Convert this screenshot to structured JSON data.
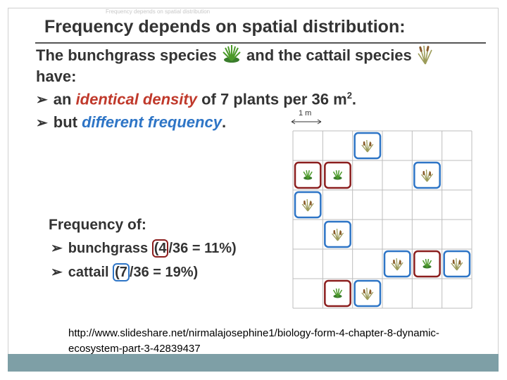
{
  "header": {
    "faint_text": "Frequency depends on spatial distribution",
    "title": "Frequency depends on spatial distribution:"
  },
  "intro": {
    "part1": "The bunchgrass species",
    "part2": "and the cattail species",
    "part3": "have:"
  },
  "bullets": {
    "b1_pre": "an ",
    "b1_emph": "identical density",
    "b1_post": " of 7 plants per 36 m",
    "b1_sup": "2",
    "b1_end": ".",
    "b2_pre": "but ",
    "b2_emph": "different frequency",
    "b2_end": "."
  },
  "grid": {
    "scale_label": "1 m",
    "rows": 6,
    "cols": 6,
    "bunchgrass_cells": [
      [
        1,
        0
      ],
      [
        1,
        1
      ],
      [
        4,
        4
      ],
      [
        5,
        1
      ]
    ],
    "cattail_cells": [
      [
        0,
        2
      ],
      [
        1,
        4
      ],
      [
        2,
        0
      ],
      [
        3,
        1
      ],
      [
        4,
        3
      ],
      [
        4,
        5
      ],
      [
        5,
        2
      ]
    ]
  },
  "frequency": {
    "title": "Frequency of:",
    "bunchgrass_label": "bunchgrass ",
    "bunchgrass_open": "(",
    "bunchgrass_count": "4",
    "bunchgrass_rest": "/36 = 11%)",
    "cattail_label": "cattail ",
    "cattail_open": "(",
    "cattail_count": "7",
    "cattail_rest": "/36 = 19%)"
  },
  "source": {
    "url": "http://www.slideshare.net/nirmalajosephine1/biology-form-4-chapter-8-dynamic-ecosystem-part-3-42839437"
  },
  "colors": {
    "bunchgrass_box": "#8b1e1e",
    "cattail_box": "#2e75c6",
    "emphasis_red": "#c0392b",
    "emphasis_blue": "#2e75c6",
    "footer": "#7e9fa6"
  }
}
